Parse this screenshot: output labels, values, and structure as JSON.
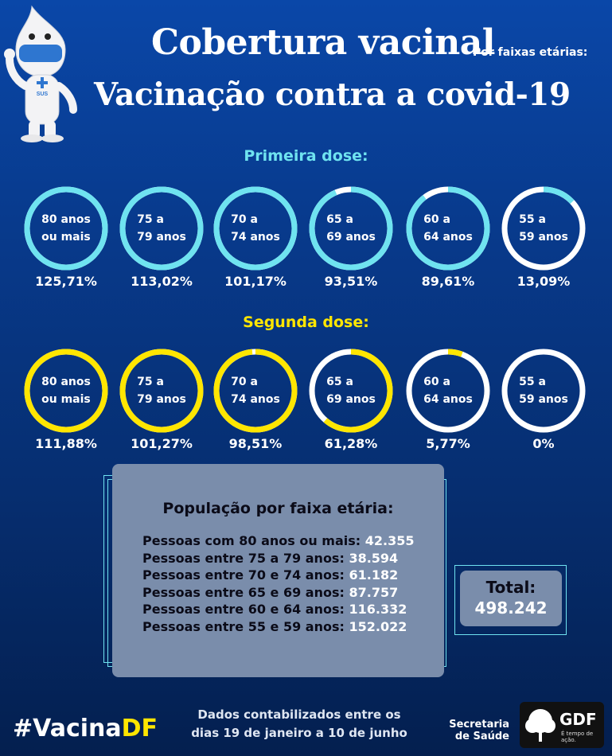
{
  "header": {
    "title": "Cobertura vacinal",
    "subtitle": "Por faixas etárias:",
    "title2": "Vacinação contra a covid-19"
  },
  "mascot": {
    "icon": "vaccine-drop-mascot-icon",
    "badge": "SUS"
  },
  "first_dose": {
    "title": "Primeira dose:",
    "color": "#6fe3f0",
    "items": [
      {
        "label": "80 anos\nou mais",
        "percent": "125,71%",
        "fill": 1.0
      },
      {
        "label": "75 a\n79 anos",
        "percent": "113,02%",
        "fill": 1.0
      },
      {
        "label": "70 a\n74 anos",
        "percent": "101,17%",
        "fill": 1.0
      },
      {
        "label": "65 a\n69 anos",
        "percent": "93,51%",
        "fill": 0.9351
      },
      {
        "label": "60 a\n64 anos",
        "percent": "89,61%",
        "fill": 0.8961
      },
      {
        "label": "55 a\n59 anos",
        "percent": "13,09%",
        "fill": 0.1309
      }
    ]
  },
  "second_dose": {
    "title": "Segunda dose:",
    "color": "#ffe600",
    "items": [
      {
        "label": "80 anos\nou mais",
        "percent": "111,88%",
        "fill": 1.0
      },
      {
        "label": "75 a\n79 anos",
        "percent": "101,27%",
        "fill": 1.0
      },
      {
        "label": "70 a\n74 anos",
        "percent": "98,51%",
        "fill": 0.9851
      },
      {
        "label": "65 a\n69 anos",
        "percent": "61,28%",
        "fill": 0.6128
      },
      {
        "label": "60 a\n64 anos",
        "percent": "5,77%",
        "fill": 0.0577
      },
      {
        "label": "55 a\n59 anos",
        "percent": "0%",
        "fill": 0
      }
    ]
  },
  "population": {
    "title": "População por faixa etária:",
    "rows": [
      {
        "label": "Pessoas com 80 anos ou mais:",
        "value": "42.355"
      },
      {
        "label": "Pessoas entre 75 a 79 anos:",
        "value": "38.594"
      },
      {
        "label": "Pessoas entre 70 e 74 anos:",
        "value": "61.182"
      },
      {
        "label": "Pessoas entre 65 e 69 anos:",
        "value": "87.757"
      },
      {
        "label": "Pessoas entre 60 e 64 anos:",
        "value": "116.332"
      },
      {
        "label": "Pessoas entre 55 e 59 anos:",
        "value": "152.022"
      }
    ]
  },
  "total": {
    "label": "Total:",
    "value": "498.242"
  },
  "footer": {
    "hashtag_prefix": "#Vacina",
    "hashtag_suffix": "DF",
    "note": "Dados contabilizados entre os\ndias 19 de janeiro a 10 de junho",
    "secretaria": "Secretaria\nde Saúde",
    "gdf_logo": "GDF",
    "gdf_tagline": "É tempo de ação."
  },
  "colors": {
    "track": "#ffffff",
    "panel": "#7a8dab",
    "hashtag_accent": "#ffe600"
  }
}
